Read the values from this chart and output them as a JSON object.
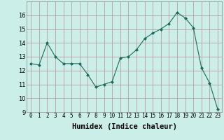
{
  "x": [
    0,
    1,
    2,
    3,
    4,
    5,
    6,
    7,
    8,
    9,
    10,
    11,
    12,
    13,
    14,
    15,
    16,
    17,
    18,
    19,
    20,
    21,
    22,
    23
  ],
  "y": [
    12.5,
    12.4,
    14.0,
    13.0,
    12.5,
    12.5,
    12.5,
    11.7,
    10.8,
    11.0,
    11.2,
    12.9,
    13.0,
    13.5,
    14.3,
    14.7,
    15.0,
    15.4,
    16.2,
    15.8,
    15.1,
    12.2,
    11.1,
    9.2
  ],
  "xlabel": "Humidex (Indice chaleur)",
  "ylim": [
    9,
    17
  ],
  "xlim": [
    -0.5,
    23.5
  ],
  "yticks": [
    9,
    10,
    11,
    12,
    13,
    14,
    15,
    16
  ],
  "xticks": [
    0,
    1,
    2,
    3,
    4,
    5,
    6,
    7,
    8,
    9,
    10,
    11,
    12,
    13,
    14,
    15,
    16,
    17,
    18,
    19,
    20,
    21,
    22,
    23
  ],
  "line_color": "#1a6b5a",
  "marker": "D",
  "marker_size": 2.0,
  "bg_color": "#cceee8",
  "grid_color": "#b09090",
  "xlabel_fontsize": 7.5,
  "tick_fontsize": 5.5
}
